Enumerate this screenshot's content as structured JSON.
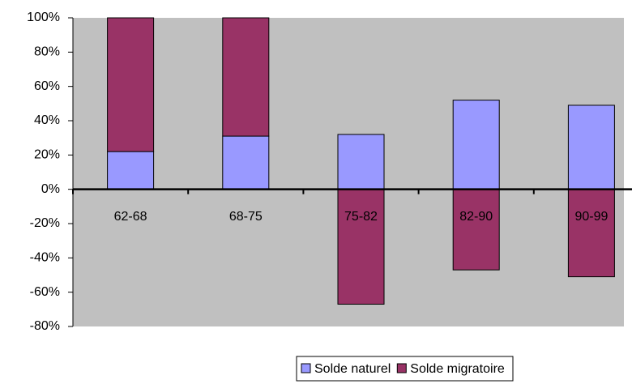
{
  "chart_data": {
    "type": "bar",
    "stacked": true,
    "categories": [
      "62-68",
      "68-75",
      "75-82",
      "82-90",
      "90-99"
    ],
    "series": [
      {
        "name": "Solde naturel",
        "color": "#9999ff",
        "values": [
          22,
          31,
          32,
          52,
          49
        ]
      },
      {
        "name": "Solde migratoire",
        "color": "#993366",
        "values": [
          78,
          69,
          -67,
          -47,
          -51
        ]
      }
    ],
    "ylim": [
      -80,
      100
    ],
    "yticks": [
      {
        "value": -80,
        "label": "-80%"
      },
      {
        "value": -60,
        "label": "-60%"
      },
      {
        "value": -40,
        "label": "-40%"
      },
      {
        "value": -20,
        "label": "-20%"
      },
      {
        "value": 0,
        "label": "0%"
      },
      {
        "value": 20,
        "label": "20%"
      },
      {
        "value": 40,
        "label": "40%"
      },
      {
        "value": 60,
        "label": "60%"
      },
      {
        "value": 80,
        "label": "80%"
      },
      {
        "value": 100,
        "label": "100%"
      }
    ],
    "grid": false,
    "legend": "bottom",
    "background": "#c0c0c0"
  }
}
